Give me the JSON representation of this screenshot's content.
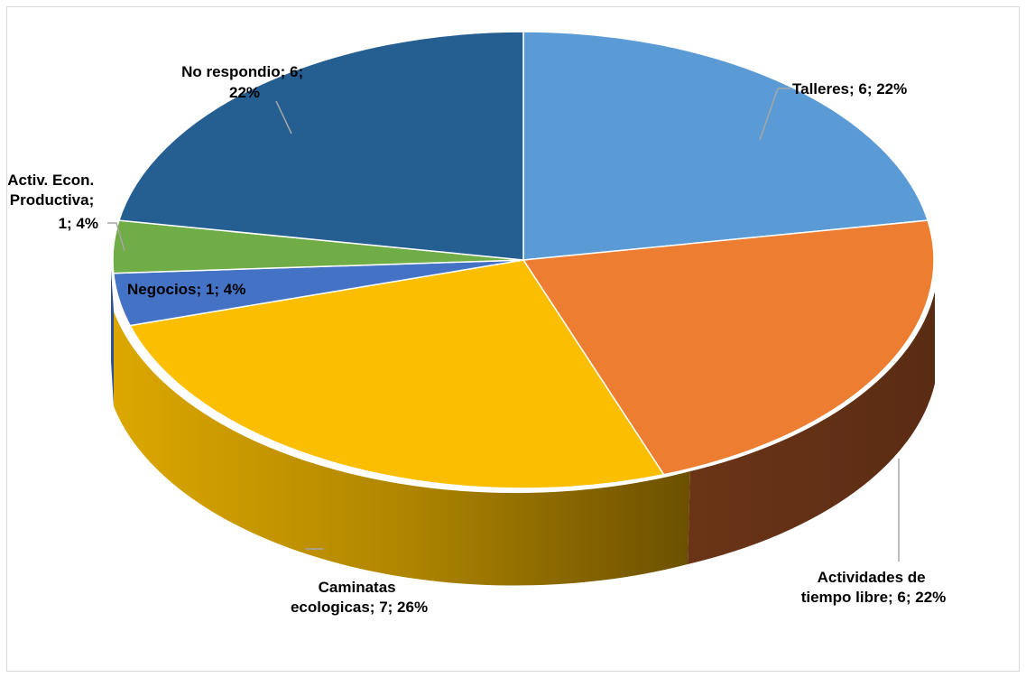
{
  "chart_data": {
    "type": "pie",
    "style": "3d",
    "categories": [
      "Talleres",
      "Actividades de tiempo libre",
      "Caminatas ecologicas",
      "Negocios",
      "Activ. Econ. Productiva",
      "No respondio"
    ],
    "values": [
      6,
      6,
      7,
      1,
      1,
      6
    ],
    "percents": [
      22,
      22,
      26,
      4,
      4,
      22
    ],
    "colors": [
      "#5b9bd5",
      "#ed7d31",
      "#fbbe00",
      "#4472c4",
      "#70ad47",
      "#255e91"
    ],
    "labels": {
      "talleres": [
        "Talleres; 6; 22%"
      ],
      "actividades": [
        "Actividades de",
        "tiempo libre; 6; 22%"
      ],
      "caminatas": [
        "Caminatas",
        "ecologicas; 7; 26%"
      ],
      "negocios": [
        "Negocios; 1; 4%"
      ],
      "activ": [
        "Activ. Econ.",
        "Productiva;",
        "1; 4%"
      ],
      "no_respondio": [
        "No respondio; 6;",
        "22%"
      ]
    }
  }
}
